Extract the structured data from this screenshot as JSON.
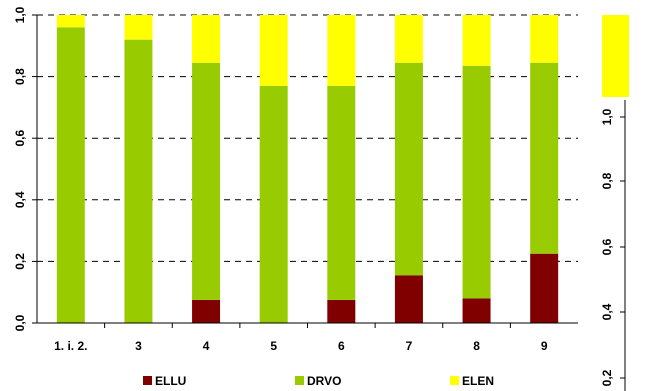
{
  "colors": {
    "ELLU": "#800000",
    "DRVO": "#99cc00",
    "ELEN": "#ffff00"
  },
  "chart_data": [
    {
      "type": "bar",
      "stacked": true,
      "categories": [
        "1. i. 2.",
        "3",
        "4",
        "5",
        "6",
        "7",
        "8",
        "9"
      ],
      "series": [
        {
          "name": "ELLU",
          "values": [
            0,
            0,
            0.075,
            0,
            0.075,
            0.155,
            0.08,
            0.225
          ]
        },
        {
          "name": "DRVO",
          "values": [
            0.96,
            0.92,
            0.77,
            0.77,
            0.695,
            0.69,
            0.755,
            0.62
          ]
        },
        {
          "name": "ELEN",
          "values": [
            0.04,
            0.08,
            0.155,
            0.23,
            0.23,
            0.155,
            0.165,
            0.155
          ]
        }
      ],
      "yticks": [
        "0,0",
        "0,2",
        "0,4",
        "0,6",
        "0,8",
        "1,0"
      ],
      "ylim": [
        0,
        1
      ],
      "grid": true,
      "legend": "bottom",
      "title": "",
      "xlabel": "",
      "ylabel": ""
    },
    {
      "type": "bar",
      "stacked": true,
      "partial": true,
      "series": [
        {
          "name": "ELEN",
          "values": [
            0.27
          ]
        }
      ],
      "yticks": [
        "0,2",
        "0,4",
        "0,6",
        "0,8",
        "1,0"
      ],
      "ylim": [
        0,
        1
      ],
      "title": "",
      "xlabel": "",
      "ylabel": ""
    }
  ]
}
